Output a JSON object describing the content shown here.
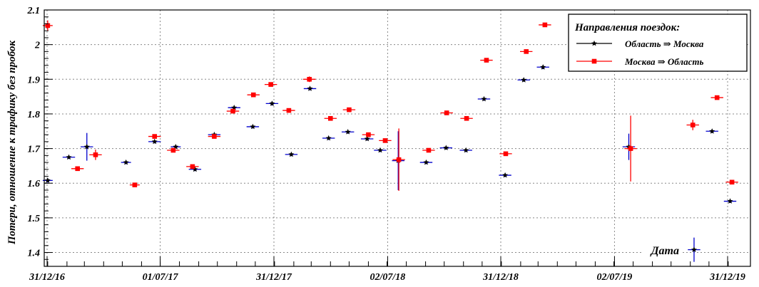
{
  "chart_data": {
    "type": "scatter",
    "title": "",
    "xlabel": "Дата",
    "ylabel": "Потери, отношение к трафику без пробок",
    "x_range": [
      "2016-12-31",
      "2019-12-31"
    ],
    "ylim": [
      1.36,
      2.1
    ],
    "grid": true,
    "yticks": [
      1.4,
      1.5,
      1.6,
      1.7,
      1.8,
      1.9,
      2.0,
      2.1
    ],
    "ytick_labels": [
      "1.4",
      "1.5",
      "1.6",
      "1.7",
      "1.8",
      "1.9",
      "2",
      "2.1"
    ],
    "xticks": [
      {
        "date": "2016-12-31",
        "label": "31/12/16"
      },
      {
        "date": "2017-07-01",
        "label": "01/07/17"
      },
      {
        "date": "2017-12-31",
        "label": "31/12/17"
      },
      {
        "date": "2018-07-02",
        "label": "02/07/18"
      },
      {
        "date": "2018-12-31",
        "label": "31/12/18"
      },
      {
        "date": "2019-07-02",
        "label": "02/07/19"
      },
      {
        "date": "2019-12-31",
        "label": "31/12/19"
      }
    ],
    "legend": {
      "title": "Направления поездок:",
      "position": "top-right"
    },
    "series": [
      {
        "name": "Область ⇒ Москва",
        "color": "#000000",
        "error_color": "#0000cc",
        "marker": "star",
        "points": [
          {
            "x": "2017-01-01",
            "y": 1.608,
            "xerr_days": 8,
            "yerr": 0.006
          },
          {
            "x": "2017-02-04",
            "y": 1.675,
            "xerr_days": 10,
            "yerr": 0.005
          },
          {
            "x": "2017-03-05",
            "y": 1.705,
            "xerr_days": 10,
            "yerr": 0.04
          },
          {
            "x": "2017-05-07",
            "y": 1.66,
            "xerr_days": 8,
            "yerr": 0.005
          },
          {
            "x": "2017-06-22",
            "y": 1.72,
            "xerr_days": 10,
            "yerr": 0.005
          },
          {
            "x": "2017-07-26",
            "y": 1.705,
            "xerr_days": 8,
            "yerr": 0.005
          },
          {
            "x": "2017-08-26",
            "y": 1.64,
            "xerr_days": 10,
            "yerr": 0.005
          },
          {
            "x": "2017-09-26",
            "y": 1.74,
            "xerr_days": 10,
            "yerr": 0.005
          },
          {
            "x": "2017-10-28",
            "y": 1.818,
            "xerr_days": 10,
            "yerr": 0.005
          },
          {
            "x": "2017-11-27",
            "y": 1.763,
            "xerr_days": 10,
            "yerr": 0.005
          },
          {
            "x": "2017-12-28",
            "y": 1.83,
            "xerr_days": 10,
            "yerr": 0.006
          },
          {
            "x": "2018-01-28",
            "y": 1.683,
            "xerr_days": 10,
            "yerr": 0.005
          },
          {
            "x": "2018-02-27",
            "y": 1.873,
            "xerr_days": 10,
            "yerr": 0.005
          },
          {
            "x": "2018-03-29",
            "y": 1.73,
            "xerr_days": 10,
            "yerr": 0.005
          },
          {
            "x": "2018-04-29",
            "y": 1.748,
            "xerr_days": 10,
            "yerr": 0.005
          },
          {
            "x": "2018-05-30",
            "y": 1.728,
            "xerr_days": 10,
            "yerr": 0.005
          },
          {
            "x": "2018-06-20",
            "y": 1.695,
            "xerr_days": 10,
            "yerr": 0.005
          },
          {
            "x": "2018-07-19",
            "y": 1.665,
            "xerr_days": 10,
            "yerr": 0.085
          },
          {
            "x": "2018-09-02",
            "y": 1.66,
            "xerr_days": 10,
            "yerr": 0.005
          },
          {
            "x": "2018-10-04",
            "y": 1.702,
            "xerr_days": 10,
            "yerr": 0.005
          },
          {
            "x": "2018-11-05",
            "y": 1.695,
            "xerr_days": 10,
            "yerr": 0.005
          },
          {
            "x": "2018-12-04",
            "y": 1.843,
            "xerr_days": 10,
            "yerr": 0.005
          },
          {
            "x": "2019-01-07",
            "y": 1.623,
            "xerr_days": 10,
            "yerr": 0.005
          },
          {
            "x": "2019-02-06",
            "y": 1.898,
            "xerr_days": 10,
            "yerr": 0.005
          },
          {
            "x": "2019-03-09",
            "y": 1.935,
            "xerr_days": 10,
            "yerr": 0.006
          },
          {
            "x": "2019-07-25",
            "y": 1.705,
            "xerr_days": 10,
            "yerr": 0.038
          },
          {
            "x": "2019-11-07",
            "y": 1.408,
            "xerr_days": 10,
            "yerr": 0.035
          },
          {
            "x": "2019-12-06",
            "y": 1.75,
            "xerr_days": 10,
            "yerr": 0.005
          },
          {
            "x": "2020-01-04",
            "y": 1.548,
            "xerr_days": 10,
            "yerr": 0.005
          }
        ]
      },
      {
        "name": "Москва ⇒ Область",
        "color": "#ff0000",
        "error_color": "#ff0000",
        "marker": "square",
        "points": [
          {
            "x": "2017-01-01",
            "y": 2.055,
            "xerr_days": 8,
            "yerr": 0.015
          },
          {
            "x": "2017-02-18",
            "y": 1.642,
            "xerr_days": 10,
            "yerr": 0.005
          },
          {
            "x": "2017-03-19",
            "y": 1.682,
            "xerr_days": 10,
            "yerr": 0.015
          },
          {
            "x": "2017-05-21",
            "y": 1.595,
            "xerr_days": 8,
            "yerr": 0.005
          },
          {
            "x": "2017-06-22",
            "y": 1.735,
            "xerr_days": 10,
            "yerr": 0.005
          },
          {
            "x": "2017-07-22",
            "y": 1.695,
            "xerr_days": 10,
            "yerr": 0.005
          },
          {
            "x": "2017-08-22",
            "y": 1.648,
            "xerr_days": 10,
            "yerr": 0.005
          },
          {
            "x": "2017-09-26",
            "y": 1.735,
            "xerr_days": 10,
            "yerr": 0.005
          },
          {
            "x": "2017-10-26",
            "y": 1.808,
            "xerr_days": 10,
            "yerr": 0.005
          },
          {
            "x": "2017-11-28",
            "y": 1.855,
            "xerr_days": 10,
            "yerr": 0.005
          },
          {
            "x": "2017-12-26",
            "y": 1.885,
            "xerr_days": 10,
            "yerr": 0.005
          },
          {
            "x": "2018-01-24",
            "y": 1.81,
            "xerr_days": 10,
            "yerr": 0.005
          },
          {
            "x": "2018-02-26",
            "y": 1.9,
            "xerr_days": 10,
            "yerr": 0.008
          },
          {
            "x": "2018-04-01",
            "y": 1.787,
            "xerr_days": 10,
            "yerr": 0.005
          },
          {
            "x": "2018-05-01",
            "y": 1.812,
            "xerr_days": 10,
            "yerr": 0.005
          },
          {
            "x": "2018-06-01",
            "y": 1.74,
            "xerr_days": 10,
            "yerr": 0.005
          },
          {
            "x": "2018-06-28",
            "y": 1.723,
            "xerr_days": 10,
            "yerr": 0.005
          },
          {
            "x": "2018-07-20",
            "y": 1.668,
            "xerr_days": 10,
            "yerr": 0.09
          },
          {
            "x": "2018-09-06",
            "y": 1.695,
            "xerr_days": 10,
            "yerr": 0.005
          },
          {
            "x": "2018-10-05",
            "y": 1.803,
            "xerr_days": 10,
            "yerr": 0.005
          },
          {
            "x": "2018-11-06",
            "y": 1.787,
            "xerr_days": 10,
            "yerr": 0.005
          },
          {
            "x": "2018-12-08",
            "y": 1.955,
            "xerr_days": 10,
            "yerr": 0.005
          },
          {
            "x": "2019-01-08",
            "y": 1.685,
            "xerr_days": 10,
            "yerr": 0.005
          },
          {
            "x": "2019-02-10",
            "y": 1.98,
            "xerr_days": 10,
            "yerr": 0.005
          },
          {
            "x": "2019-03-12",
            "y": 2.057,
            "xerr_days": 10,
            "yerr": 0.005
          },
          {
            "x": "2019-07-28",
            "y": 1.7,
            "xerr_days": 10,
            "yerr": 0.095
          },
          {
            "x": "2019-11-05",
            "y": 1.768,
            "xerr_days": 10,
            "yerr": 0.015
          },
          {
            "x": "2019-12-14",
            "y": 1.847,
            "xerr_days": 10,
            "yerr": 0.005
          },
          {
            "x": "2020-01-07",
            "y": 1.603,
            "xerr_days": 10,
            "yerr": 0.005
          }
        ]
      }
    ]
  }
}
